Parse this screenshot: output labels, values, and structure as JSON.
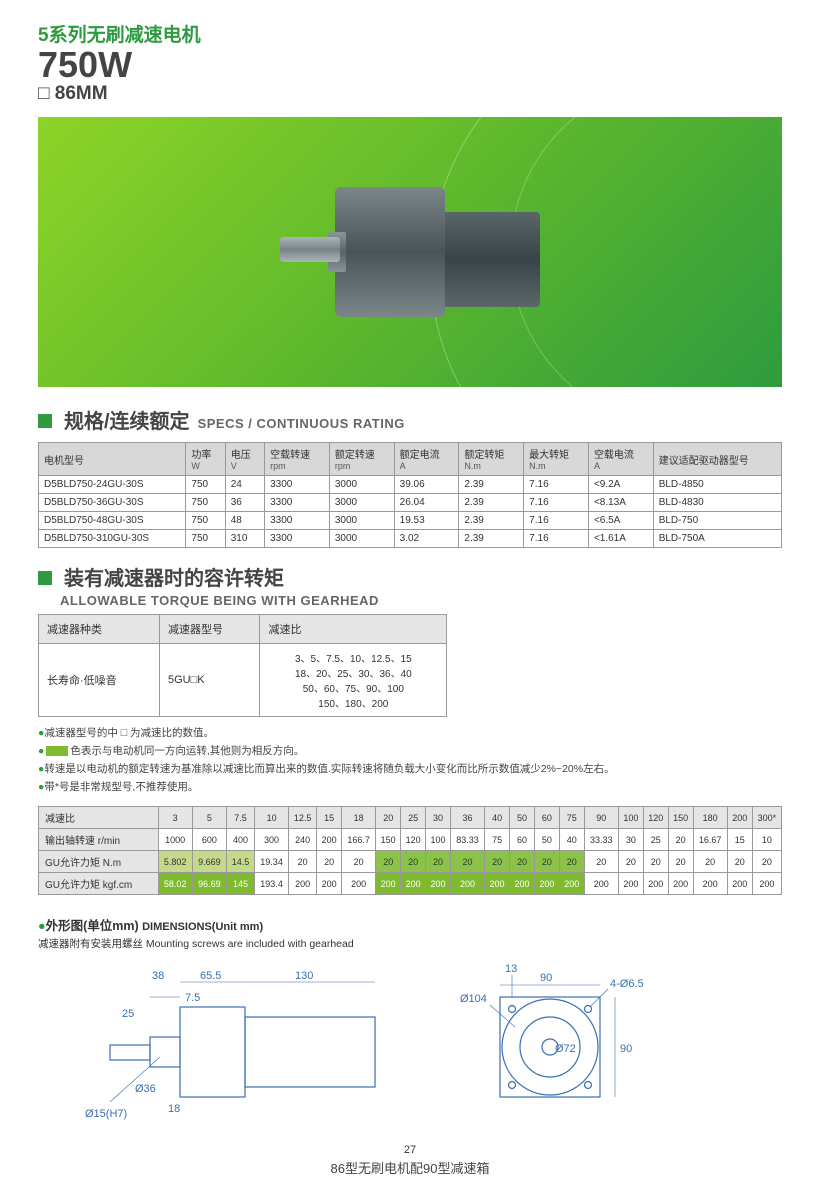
{
  "header": {
    "series": "5系列无刷减速电机",
    "watt": "750W",
    "size": "□ 86MM"
  },
  "specs": {
    "title_cn": "规格/连续额定",
    "title_en": "SPECS / CONTINUOUS RATING",
    "columns": [
      {
        "cn": "电机型号",
        "sub": ""
      },
      {
        "cn": "功率",
        "sub": "W"
      },
      {
        "cn": "电压",
        "sub": "V"
      },
      {
        "cn": "空载转速",
        "sub": "rpm"
      },
      {
        "cn": "额定转速",
        "sub": "rpm"
      },
      {
        "cn": "额定电流",
        "sub": "A"
      },
      {
        "cn": "额定转矩",
        "sub": "N.m"
      },
      {
        "cn": "最大转矩",
        "sub": "N.m"
      },
      {
        "cn": "空载电流",
        "sub": "A"
      },
      {
        "cn": "建议适配驱动器型号",
        "sub": ""
      }
    ],
    "rows": [
      [
        "D5BLD750-24GU-30S",
        "750",
        "24",
        "3300",
        "3000",
        "39.06",
        "2.39",
        "7.16",
        "<9.2A",
        "BLD-4850"
      ],
      [
        "D5BLD750-36GU-30S",
        "750",
        "36",
        "3300",
        "3000",
        "26.04",
        "2.39",
        "7.16",
        "<8.13A",
        "BLD-4830"
      ],
      [
        "D5BLD750-48GU-30S",
        "750",
        "48",
        "3300",
        "3000",
        "19.53",
        "2.39",
        "7.16",
        "<6.5A",
        "BLD-750"
      ],
      [
        "D5BLD750-310GU-30S",
        "750",
        "310",
        "3300",
        "3000",
        "3.02",
        "2.39",
        "7.16",
        "<1.61A",
        "BLD-750A"
      ]
    ]
  },
  "torque": {
    "title_cn": "装有减速器时的容许转矩",
    "title_en": "ALLOWABLE TORQUE BEING WITH GEARHEAD",
    "info_cols": [
      "减速器种类",
      "减速器型号",
      "减速比"
    ],
    "info_row": [
      "长寿命·低噪音",
      "5GU□K",
      "3、5、7.5、10、12.5、15\n18、20、25、30、36、40\n50、60、75、90、100\n150、180、200"
    ]
  },
  "notes": {
    "n1": "减速器型号的中 □ 为减速比的数值。",
    "n2_a": "色表示与电动机同一方向运转,其他则为相反方向。",
    "n3": "转速是以电动机的额定转速为基准除以减速比而算出来的数值.实际转速将随负载大小变化而比所示数值减少2%~20%左右。",
    "n4": "带*号是非常规型号,不推荐使用。"
  },
  "ratio": {
    "row_labels": [
      "减速比",
      "输出轴转速 r/min",
      "GU允许力矩 N.m",
      "GU允许力矩 kgf.cm"
    ],
    "ratios": [
      "3",
      "5",
      "7.5",
      "10",
      "12.5",
      "15",
      "18",
      "20",
      "25",
      "30",
      "36",
      "40",
      "50",
      "60",
      "75",
      "90",
      "100",
      "120",
      "150",
      "180",
      "200",
      "300*"
    ],
    "rpm": [
      "1000",
      "600",
      "400",
      "300",
      "240",
      "200",
      "166.7",
      "150",
      "120",
      "100",
      "83.33",
      "75",
      "60",
      "50",
      "40",
      "33.33",
      "30",
      "25",
      "20",
      "16.67",
      "15",
      "10"
    ],
    "nm": [
      "5.802",
      "9.669",
      "14.5",
      "19.34",
      "20",
      "20",
      "20",
      "20",
      "20",
      "20",
      "20",
      "20",
      "20",
      "20",
      "20",
      "20",
      "20",
      "20",
      "20",
      "20",
      "20",
      "20"
    ],
    "kgf": [
      "58.02",
      "96.69",
      "145",
      "193.4",
      "200",
      "200",
      "200",
      "200",
      "200",
      "200",
      "200",
      "200",
      "200",
      "200",
      "200",
      "200",
      "200",
      "200",
      "200",
      "200",
      "200",
      "200"
    ],
    "hl_a": [
      0,
      1,
      2
    ],
    "hl_b": [
      7,
      8,
      9,
      10,
      11,
      12,
      13,
      14
    ]
  },
  "dims": {
    "title_cn": "外形图(单位mm)",
    "title_en": "DIMENSIONS(Unit mm)",
    "sub": "减速器附有安装用螺丝 Mounting screws are included with gearhead",
    "labels": {
      "d38": "38",
      "d655": "65.5",
      "d130": "130",
      "d75": "7.5",
      "d25": "25",
      "d36": "Ø36",
      "d15": "Ø15(H7)",
      "d18": "18",
      "d90": "90",
      "d104": "Ø104",
      "d13": "13",
      "d4_65": "4-Ø6.5",
      "d72": "Ø72",
      "d90r": "90"
    }
  },
  "page_num": "27",
  "caption": "86型无刷电机配90型减速箱"
}
